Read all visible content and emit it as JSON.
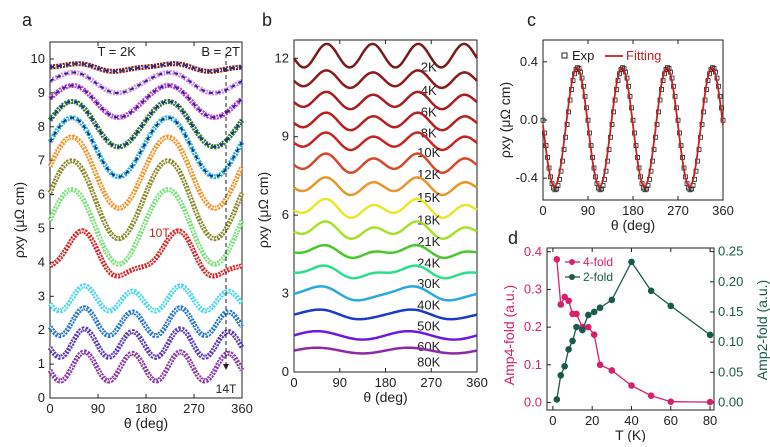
{
  "chart_data": [
    {
      "panel": "a",
      "type": "line",
      "xlabel": "θ (deg)",
      "ylabel": "ρxy (μΩ cm)",
      "xlim": [
        0,
        360
      ],
      "ylim": [
        0,
        10.5
      ],
      "xticks": [
        0,
        90,
        180,
        270,
        360
      ],
      "yticks": [
        0,
        1,
        2,
        3,
        4,
        5,
        6,
        7,
        8,
        9,
        10
      ],
      "annotations": [
        "T = 2K",
        "B = 2T",
        "10T",
        "14T"
      ],
      "series": [
        {
          "color": "#7a1f1f",
          "offset": 9.75,
          "amp_4fold": 0.03,
          "amp_2fold": 0.1,
          "fit": true
        },
        {
          "color": "#d98be0",
          "offset": 9.3,
          "amp_4fold": 0.02,
          "amp_2fold": 0.3,
          "fit": true
        },
        {
          "color": "#c23fc9",
          "offset": 8.75,
          "amp_4fold": 0.02,
          "amp_2fold": 0.47,
          "fit": true
        },
        {
          "color": "#2a7a2a",
          "offset": 8.08,
          "amp_4fold": 0.02,
          "amp_2fold": 0.67,
          "fit": true
        },
        {
          "color": "#2bb8c8",
          "offset": 7.4,
          "amp_4fold": 0.02,
          "amp_2fold": 0.87,
          "fit": true
        },
        {
          "color": "#f0962a",
          "offset": 6.65,
          "amp_4fold": 0.02,
          "amp_2fold": 1.05,
          "fit": false
        },
        {
          "color": "#8a8a2a",
          "offset": 5.85,
          "amp_4fold": 0.02,
          "amp_2fold": 1.15,
          "fit": false
        },
        {
          "color": "#7de07d",
          "offset": 5.05,
          "amp_4fold": 0.02,
          "amp_2fold": 1.1,
          "fit": false
        },
        {
          "color": "#d42a2a",
          "offset": 4.15,
          "amp_4fold": 0.2,
          "amp_2fold": 0.6,
          "fit": false
        },
        {
          "color": "#4fd8e8",
          "offset": 2.9,
          "amp_4fold": 0.33,
          "amp_2fold": 0.08,
          "fit": false
        },
        {
          "color": "#2a78c8",
          "offset": 2.22,
          "amp_4fold": 0.38,
          "amp_2fold": 0.06,
          "fit": false
        },
        {
          "color": "#5a3ab0",
          "offset": 1.6,
          "amp_4fold": 0.4,
          "amp_2fold": 0.04,
          "fit": false
        },
        {
          "color": "#8a3aa8",
          "offset": 0.92,
          "amp_4fold": 0.42,
          "amp_2fold": 0.02,
          "fit": false
        }
      ]
    },
    {
      "panel": "b",
      "type": "line",
      "xlabel": "θ (deg)",
      "ylabel": "ρxy (μΩ cm)",
      "xlim": [
        0,
        360
      ],
      "ylim": [
        0,
        12.7
      ],
      "xticks": [
        0,
        90,
        180,
        270,
        360
      ],
      "yticks": [
        0,
        3,
        6,
        9,
        12
      ],
      "series": [
        {
          "name": "2K",
          "color": "#7a1a1a",
          "offset": 12.1,
          "amp_4fold": 0.45,
          "amp_2fold": 0.0
        },
        {
          "name": "4K",
          "color": "#8c1c1c",
          "offset": 11.2,
          "amp_4fold": 0.3,
          "amp_2fold": 0.05
        },
        {
          "name": "6K",
          "color": "#a81e1e",
          "offset": 10.38,
          "amp_4fold": 0.28,
          "amp_2fold": 0.07
        },
        {
          "name": "8K",
          "color": "#b82020",
          "offset": 9.58,
          "amp_4fold": 0.27,
          "amp_2fold": 0.09
        },
        {
          "name": "10K",
          "color": "#c82424",
          "offset": 8.82,
          "amp_4fold": 0.26,
          "amp_2fold": 0.1
        },
        {
          "name": "12K",
          "color": "#d8482a",
          "offset": 7.98,
          "amp_4fold": 0.28,
          "amp_2fold": 0.12
        },
        {
          "name": "15K",
          "color": "#e8962a",
          "offset": 7.1,
          "amp_4fold": 0.25,
          "amp_2fold": 0.12
        },
        {
          "name": "18K",
          "color": "#e8e82a",
          "offset": 6.25,
          "amp_4fold": 0.25,
          "amp_2fold": 0.15
        },
        {
          "name": "21K",
          "color": "#a8e02a",
          "offset": 5.42,
          "amp_4fold": 0.22,
          "amp_2fold": 0.15
        },
        {
          "name": "24K",
          "color": "#4ac82a",
          "offset": 4.6,
          "amp_4fold": 0.12,
          "amp_2fold": 0.16
        },
        {
          "name": "30K",
          "color": "#2ae08a",
          "offset": 3.82,
          "amp_4fold": 0.1,
          "amp_2fold": 0.18
        },
        {
          "name": "40K",
          "color": "#2aa8e0",
          "offset": 3.0,
          "amp_4fold": 0.05,
          "amp_2fold": 0.25
        },
        {
          "name": "50K",
          "color": "#1a3ac8",
          "offset": 2.2,
          "amp_4fold": 0.02,
          "amp_2fold": 0.18
        },
        {
          "name": "60K",
          "color": "#6a1ae0",
          "offset": 1.4,
          "amp_4fold": 0.0,
          "amp_2fold": 0.16
        },
        {
          "name": "80K",
          "color": "#8a2aa8",
          "offset": 0.82,
          "amp_4fold": 0.0,
          "amp_2fold": 0.11
        }
      ]
    },
    {
      "panel": "c",
      "type": "line",
      "xlabel": "θ (deg)",
      "ylabel": "ρxy (μΩ cm)",
      "xlim": [
        0,
        360
      ],
      "ylim": [
        -0.55,
        0.55
      ],
      "xticks": [
        0,
        90,
        180,
        270,
        360
      ],
      "yticks": [
        -0.4,
        0.0,
        0.4
      ],
      "legend": "top-left",
      "series": [
        {
          "name": "Exp",
          "color": "#222222",
          "marker": "square",
          "offset": -0.06,
          "amp_4fold": 0.42
        },
        {
          "name": "Fitting",
          "color": "#c82020",
          "marker": "none",
          "offset": -0.05,
          "amp_4fold": 0.41
        }
      ]
    },
    {
      "panel": "d",
      "type": "line",
      "xlabel": "T (K)",
      "ylabel": "Amp4-fold (a.u.)",
      "y2label": "Amp2-fold (a.u.)",
      "xlim": [
        -3,
        82
      ],
      "ylim": [
        -0.02,
        0.41
      ],
      "y2lim": [
        -0.0125,
        0.256
      ],
      "xticks": [
        0,
        20,
        40,
        60,
        80
      ],
      "yticks": [
        0.0,
        0.1,
        0.2,
        0.3,
        0.4
      ],
      "y2ticks": [
        0.0,
        0.05,
        0.1,
        0.15,
        0.2,
        0.25
      ],
      "legend": "top-left",
      "x": [
        2,
        4,
        6,
        8,
        10,
        12,
        15,
        18,
        21,
        24,
        30,
        40,
        50,
        60,
        80
      ],
      "series": [
        {
          "name": "4-fold",
          "axis": "left",
          "color": "#d6206e",
          "values": [
            0.38,
            0.26,
            0.28,
            0.27,
            0.235,
            0.235,
            0.2,
            0.2,
            0.18,
            0.1,
            0.085,
            0.045,
            0.018,
            0.002,
            0.001
          ]
        },
        {
          "name": "2-fold",
          "axis": "right",
          "color": "#1a5a4a",
          "values": [
            0.005,
            0.045,
            0.06,
            0.088,
            0.102,
            0.125,
            0.12,
            0.145,
            0.15,
            0.157,
            0.17,
            0.233,
            0.185,
            0.16,
            0.112
          ]
        }
      ]
    }
  ],
  "panel_labels": [
    "a",
    "b",
    "c",
    "d"
  ]
}
